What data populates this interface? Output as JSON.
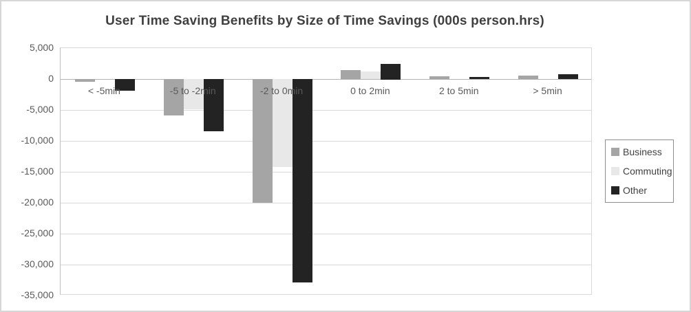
{
  "chart_data": {
    "type": "bar",
    "title": "User Time Saving Benefits by Size of Time Savings (000s person.hrs)",
    "categories": [
      "< -5min",
      "-5 to -2min",
      "-2 to 0min",
      "0 to 2min",
      "2 to 5min",
      "> 5min"
    ],
    "series": [
      {
        "name": "Business",
        "color": "#a5a5a5",
        "values": [
          -450,
          -5900,
          -20000,
          1400,
          450,
          550
        ]
      },
      {
        "name": "Commuting",
        "color": "#e8e8e8",
        "values": [
          0,
          -4900,
          -14200,
          1250,
          0,
          0
        ]
      },
      {
        "name": "Other",
        "color": "#232323",
        "values": [
          -1900,
          -8400,
          -32900,
          2500,
          300,
          800
        ]
      }
    ],
    "ylabel": "",
    "xlabel": "",
    "ylim": [
      -35000,
      5000
    ],
    "ytick_step": 5000,
    "ytick_labels": [
      "5,000",
      "0",
      "-5,000",
      "-10,000",
      "-15,000",
      "-20,000",
      "-25,000",
      "-30,000",
      "-35,000"
    ],
    "grid": true,
    "legend_position": "right"
  },
  "colors": {
    "gridline": "#d9d9d9",
    "zero_axis": "#b3b3b3",
    "axis_text": "#595959",
    "title_text": "#404040",
    "legend_border": "#8c8c8c",
    "frame_border": "#d6d6d6"
  }
}
